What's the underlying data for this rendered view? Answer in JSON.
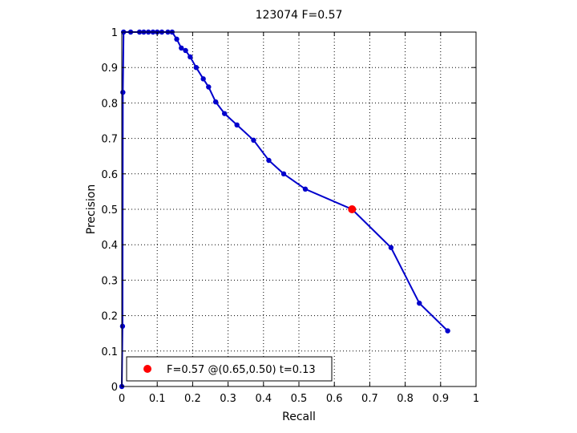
{
  "chart_data": {
    "type": "line",
    "title": "123074 F=0.57",
    "xlabel": "Recall",
    "ylabel": "Precision",
    "xlim": [
      0,
      1
    ],
    "ylim": [
      0,
      1
    ],
    "grid": true,
    "xticks": [
      "0",
      "0.1",
      "0.2",
      "0.3",
      "0.4",
      "0.5",
      "0.6",
      "0.7",
      "0.8",
      "0.9",
      "1"
    ],
    "yticks": [
      "0",
      "0.1",
      "0.2",
      "0.3",
      "0.4",
      "0.5",
      "0.6",
      "0.7",
      "0.8",
      "0.9",
      "1"
    ],
    "series": [
      {
        "color": "#0000cc",
        "points": [
          [
            0.0,
            0.0
          ],
          [
            0.002,
            0.17
          ],
          [
            0.003,
            0.83
          ],
          [
            0.005,
            1.0
          ],
          [
            0.025,
            1.0
          ],
          [
            0.05,
            1.0
          ],
          [
            0.062,
            1.0
          ],
          [
            0.075,
            1.0
          ],
          [
            0.088,
            1.0
          ],
          [
            0.1,
            1.0
          ],
          [
            0.113,
            1.0
          ],
          [
            0.13,
            1.0
          ],
          [
            0.142,
            1.0
          ],
          [
            0.155,
            0.98
          ],
          [
            0.168,
            0.955
          ],
          [
            0.18,
            0.948
          ],
          [
            0.193,
            0.93
          ],
          [
            0.21,
            0.9
          ],
          [
            0.23,
            0.868
          ],
          [
            0.245,
            0.845
          ],
          [
            0.265,
            0.803
          ],
          [
            0.29,
            0.77
          ],
          [
            0.325,
            0.738
          ],
          [
            0.372,
            0.695
          ],
          [
            0.415,
            0.638
          ],
          [
            0.457,
            0.6
          ],
          [
            0.518,
            0.557
          ],
          [
            0.65,
            0.5
          ],
          [
            0.76,
            0.392
          ],
          [
            0.84,
            0.235
          ],
          [
            0.92,
            0.157
          ]
        ]
      }
    ],
    "highlight": {
      "x": 0.65,
      "y": 0.5,
      "color": "#ff0000"
    },
    "legend": {
      "label": "F=0.57 @(0.65,0.50) t=0.13",
      "placement": "bottom-left"
    }
  }
}
